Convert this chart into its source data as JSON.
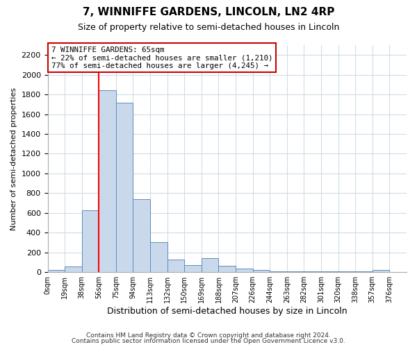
{
  "title": "7, WINNIFFE GARDENS, LINCOLN, LN2 4RP",
  "subtitle": "Size of property relative to semi-detached houses in Lincoln",
  "xlabel": "Distribution of semi-detached houses by size in Lincoln",
  "ylabel": "Number of semi-detached properties",
  "bin_labels": [
    "0sqm",
    "19sqm",
    "38sqm",
    "56sqm",
    "75sqm",
    "94sqm",
    "113sqm",
    "132sqm",
    "150sqm",
    "169sqm",
    "188sqm",
    "207sqm",
    "226sqm",
    "244sqm",
    "263sqm",
    "282sqm",
    "301sqm",
    "320sqm",
    "338sqm",
    "357sqm",
    "376sqm"
  ],
  "bar_heights": [
    20,
    60,
    625,
    1840,
    1720,
    740,
    305,
    130,
    70,
    140,
    65,
    40,
    20,
    5,
    5,
    5,
    5,
    5,
    5,
    20,
    0
  ],
  "bar_color": "#c9d9eb",
  "bar_edge_color": "#5b8db8",
  "property_line_x": 3,
  "property_line_color": "red",
  "annotation_title": "7 WINNIFFE GARDENS: 65sqm",
  "annotation_line1": "← 22% of semi-detached houses are smaller (1,210)",
  "annotation_line2": "77% of semi-detached houses are larger (4,245) →",
  "annotation_box_color": "white",
  "annotation_box_edge": "#cc0000",
  "ylim": [
    0,
    2300
  ],
  "yticks": [
    0,
    200,
    400,
    600,
    800,
    1000,
    1200,
    1400,
    1600,
    1800,
    2000,
    2200
  ],
  "background_color": "white",
  "grid_color": "#d0dce8",
  "footer1": "Contains HM Land Registry data © Crown copyright and database right 2024.",
  "footer2": "Contains public sector information licensed under the Open Government Licence v3.0."
}
